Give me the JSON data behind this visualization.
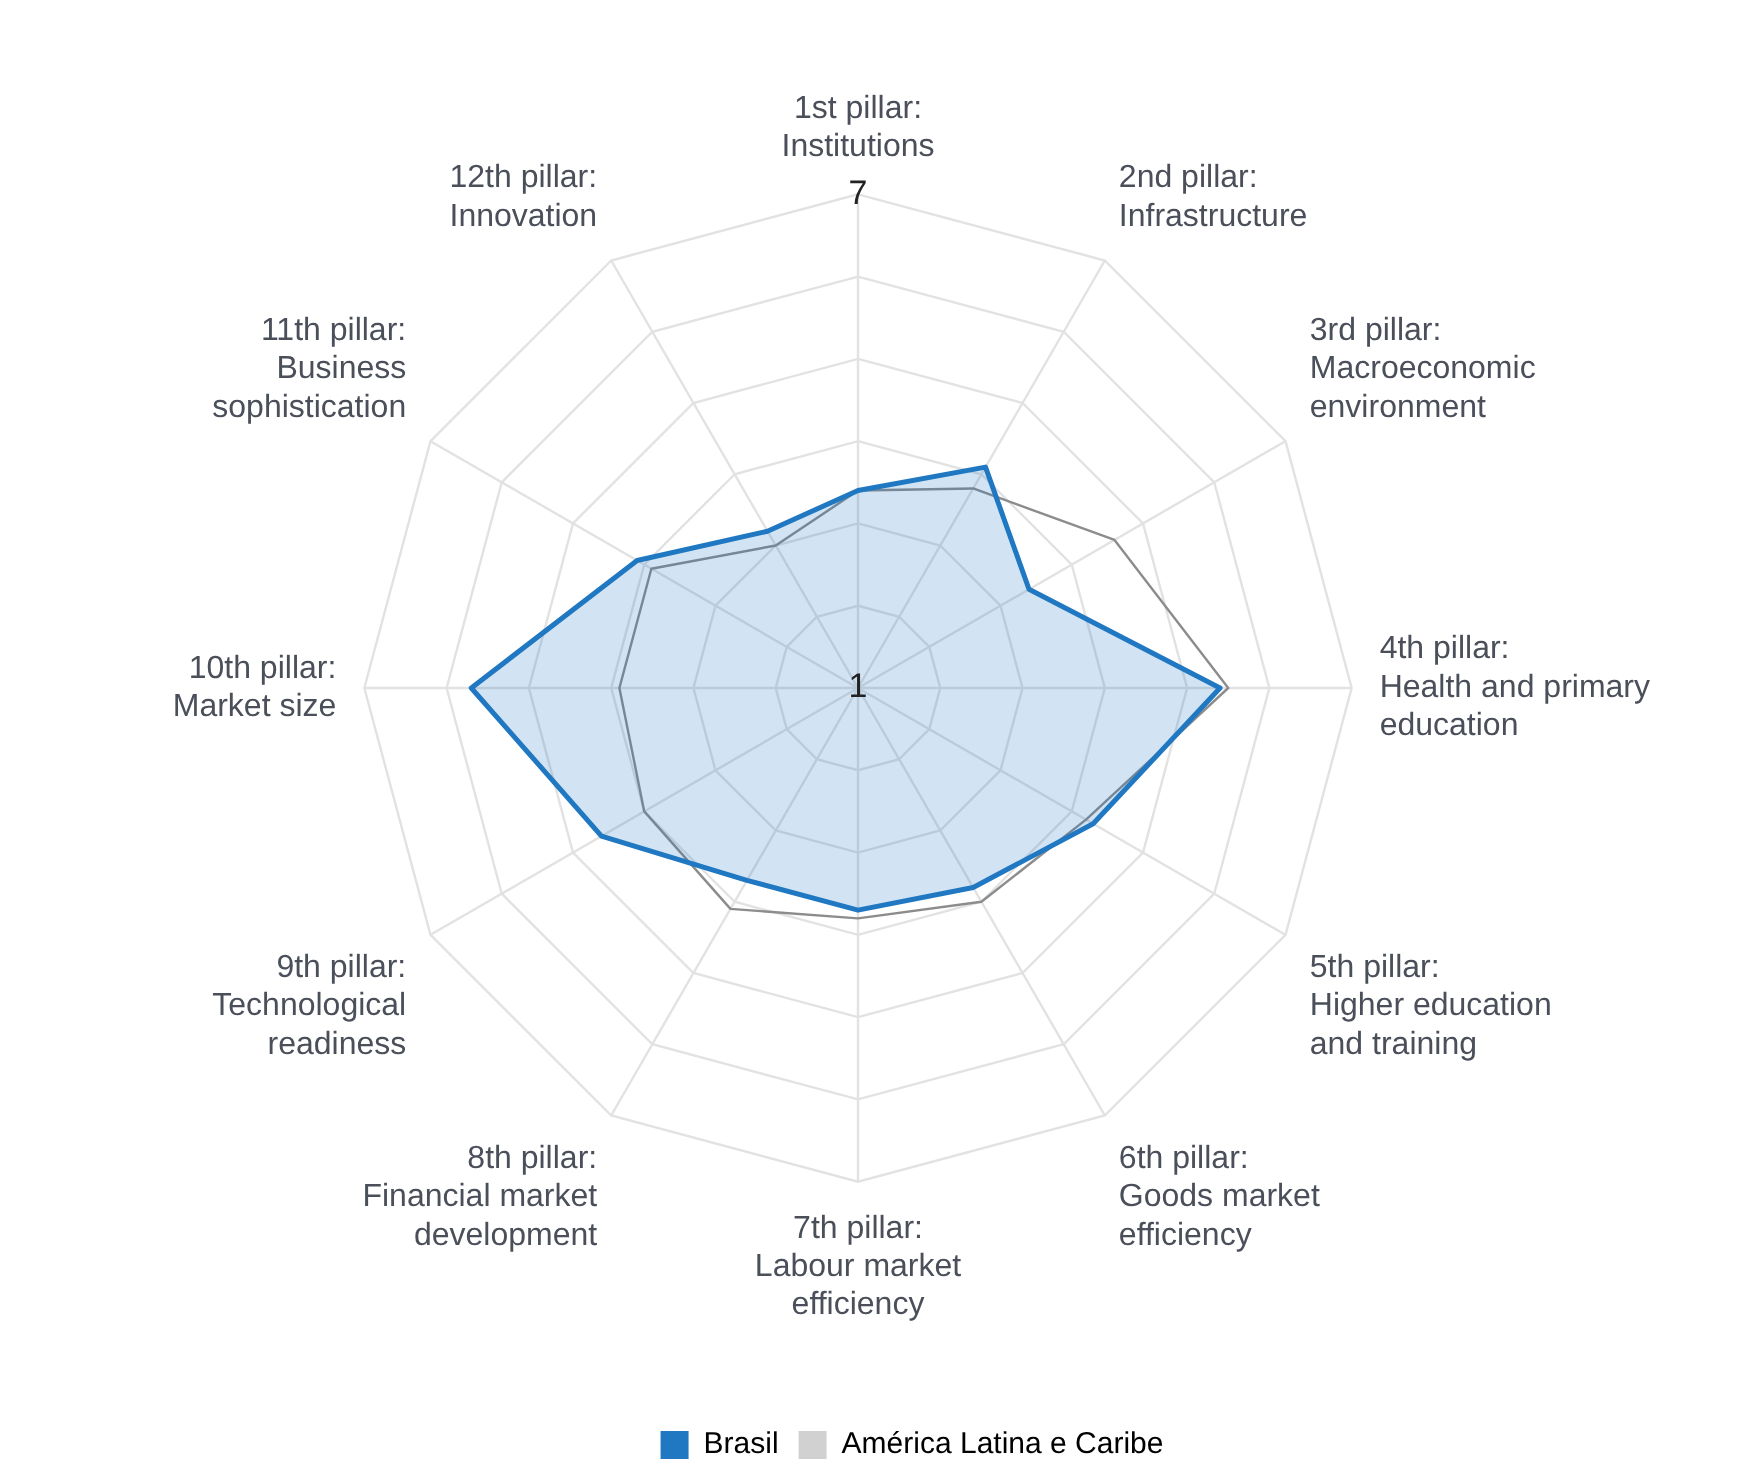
{
  "chart_data": {
    "type": "radar",
    "categories": [
      "1st pillar: Institutions",
      "2nd pillar: Infrastructure",
      "3rd pillar: Macroeconomic environment",
      "4th pillar: Health and primary education",
      "5th pillar: Higher education and training",
      "6th pillar: Goods market efficiency",
      "7th pillar: Labour market efficiency",
      "8th pillar: Financial market development",
      "9th pillar: Technological readiness",
      "10th pillar: Market size",
      "11th pillar: Business sophistication",
      "12th pillar: Innovation"
    ],
    "series": [
      {
        "name": "Brasil",
        "color": "#1f78c1",
        "values": [
          3.4,
          4.1,
          3.4,
          5.4,
          4.3,
          3.8,
          3.7,
          3.7,
          4.6,
          5.7,
          4.1,
          3.2
        ]
      },
      {
        "name": "América Latina e Caribe",
        "color": "#8c8c8c",
        "values": [
          3.4,
          3.8,
          4.6,
          5.5,
          4.2,
          4.0,
          3.8,
          4.1,
          4.0,
          3.9,
          3.9,
          3.0
        ]
      }
    ],
    "ylim": [
      1,
      7
    ],
    "yticks": [
      1,
      7
    ],
    "grid": true,
    "legend": "bottom"
  }
}
